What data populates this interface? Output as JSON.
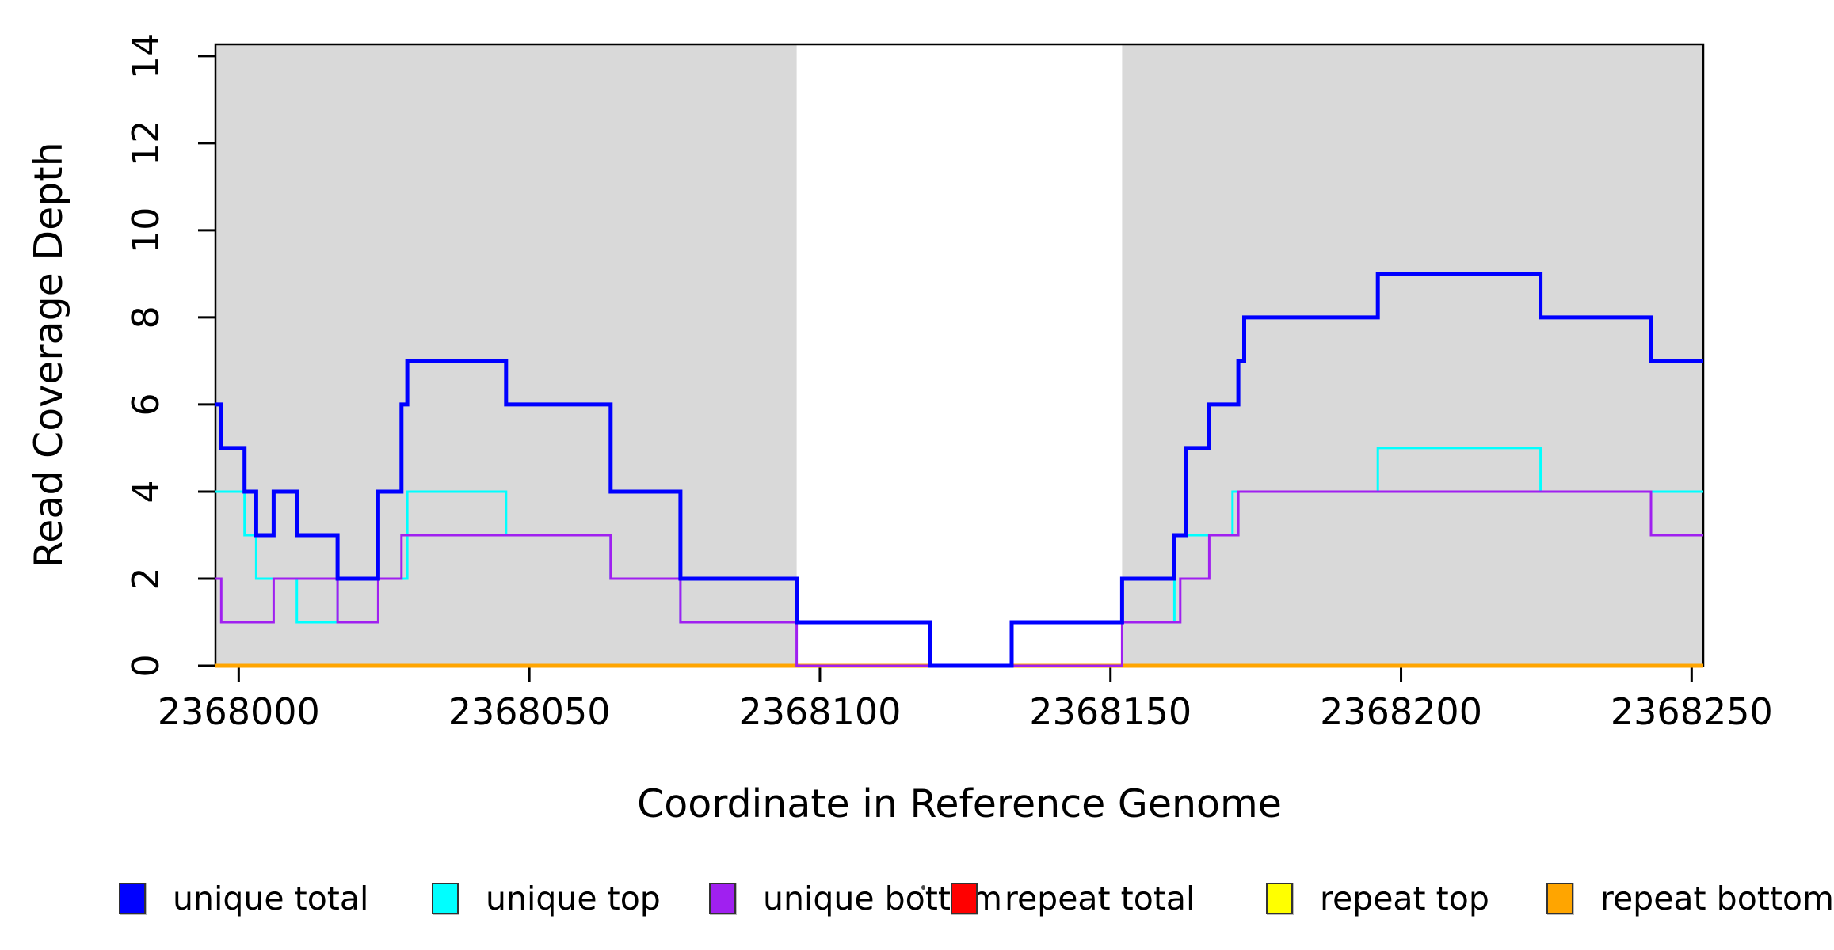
{
  "figure": {
    "background": "#ffffff"
  },
  "chart_data": {
    "type": "line",
    "subtype": "step",
    "title": "",
    "xlabel": "Coordinate in Reference Genome",
    "ylabel": "Read Coverage Depth",
    "xlim": [
      2367996,
      2368252
    ],
    "ylim": [
      0,
      14.27
    ],
    "x_ticks": [
      2368000,
      2368050,
      2368100,
      2368150,
      2368200,
      2368250
    ],
    "x_tick_labels": [
      "2368000",
      "2368050",
      "2368100",
      "2368150",
      "2368200",
      "2368250"
    ],
    "y_ticks": [
      0,
      2,
      4,
      6,
      8,
      10,
      12,
      14
    ],
    "y_tick_labels": [
      "0",
      "2",
      "4",
      "6",
      "8",
      "10",
      "12",
      "14"
    ],
    "grid": "off",
    "frame": "box",
    "axis_color": "#000000",
    "shaded_regions": [
      {
        "x0": 2367996,
        "x1": 2368096,
        "color": "#d9d9d9",
        "meaning": "masked/repeat region"
      },
      {
        "x0": 2368152,
        "x1": 2368252,
        "color": "#d9d9d9",
        "meaning": "masked/repeat region"
      }
    ],
    "series": [
      {
        "name": "unique total",
        "color": "#0000ff",
        "width": 5,
        "points": [
          [
            2367996,
            6
          ],
          [
            2367997,
            5
          ],
          [
            2368001,
            4
          ],
          [
            2368003,
            3
          ],
          [
            2368006,
            4
          ],
          [
            2368010,
            3
          ],
          [
            2368017,
            2
          ],
          [
            2368024,
            4
          ],
          [
            2368028,
            6
          ],
          [
            2368029,
            7
          ],
          [
            2368046,
            6
          ],
          [
            2368064,
            4
          ],
          [
            2368076,
            2
          ],
          [
            2368096,
            1
          ],
          [
            2368119,
            0
          ],
          [
            2368133,
            1
          ],
          [
            2368152,
            2
          ],
          [
            2368161,
            3
          ],
          [
            2368163,
            5
          ],
          [
            2368167,
            6
          ],
          [
            2368172,
            7
          ],
          [
            2368173,
            8
          ],
          [
            2368196,
            9
          ],
          [
            2368224,
            8
          ],
          [
            2368243,
            7
          ]
        ]
      },
      {
        "name": "unique top",
        "color": "#00ffff",
        "width": 3,
        "points": [
          [
            2367996,
            4
          ],
          [
            2368001,
            3
          ],
          [
            2368003,
            2
          ],
          [
            2368010,
            1
          ],
          [
            2368017,
            2
          ],
          [
            2368029,
            4
          ],
          [
            2368046,
            3
          ],
          [
            2368064,
            2
          ],
          [
            2368076,
            1
          ],
          [
            2368119,
            0
          ],
          [
            2368133,
            1
          ],
          [
            2368161,
            3
          ],
          [
            2368171,
            4
          ],
          [
            2368196,
            5
          ],
          [
            2368224,
            4
          ]
        ]
      },
      {
        "name": "unique bottom",
        "color": "#a020f0",
        "width": 3,
        "points": [
          [
            2367996,
            2
          ],
          [
            2367997,
            1
          ],
          [
            2368006,
            2
          ],
          [
            2368017,
            1
          ],
          [
            2368024,
            2
          ],
          [
            2368028,
            3
          ],
          [
            2368064,
            2
          ],
          [
            2368076,
            1
          ],
          [
            2368096,
            0
          ],
          [
            2368152,
            1
          ],
          [
            2368162,
            2
          ],
          [
            2368167,
            3
          ],
          [
            2368172,
            4
          ],
          [
            2368243,
            3
          ]
        ]
      },
      {
        "name": "repeat total",
        "color": "#ff0000",
        "width": 3,
        "points": [
          [
            2367996,
            0
          ]
        ]
      },
      {
        "name": "repeat top",
        "color": "#ffff00",
        "width": 3,
        "points": [
          [
            2367996,
            0
          ]
        ]
      },
      {
        "name": "repeat bottom",
        "color": "#ffa500",
        "width": 5,
        "points": [
          [
            2367996,
            0
          ]
        ]
      }
    ],
    "draw_order": [
      "repeat total",
      "repeat top",
      "repeat bottom",
      "unique top",
      "unique bottom",
      "unique total"
    ],
    "legend": [
      {
        "label": "unique total",
        "color": "#0000ff"
      },
      {
        "label": "unique top",
        "color": "#00ffff"
      },
      {
        "label": "unique bottom",
        "color": "#a020f0"
      },
      {
        "label": "repeat total",
        "color": "#ff0000"
      },
      {
        "label": "repeat top",
        "color": "#ffff00"
      },
      {
        "label": "repeat bottom",
        "color": "#ffa500"
      }
    ],
    "legend_position": "bottom"
  }
}
